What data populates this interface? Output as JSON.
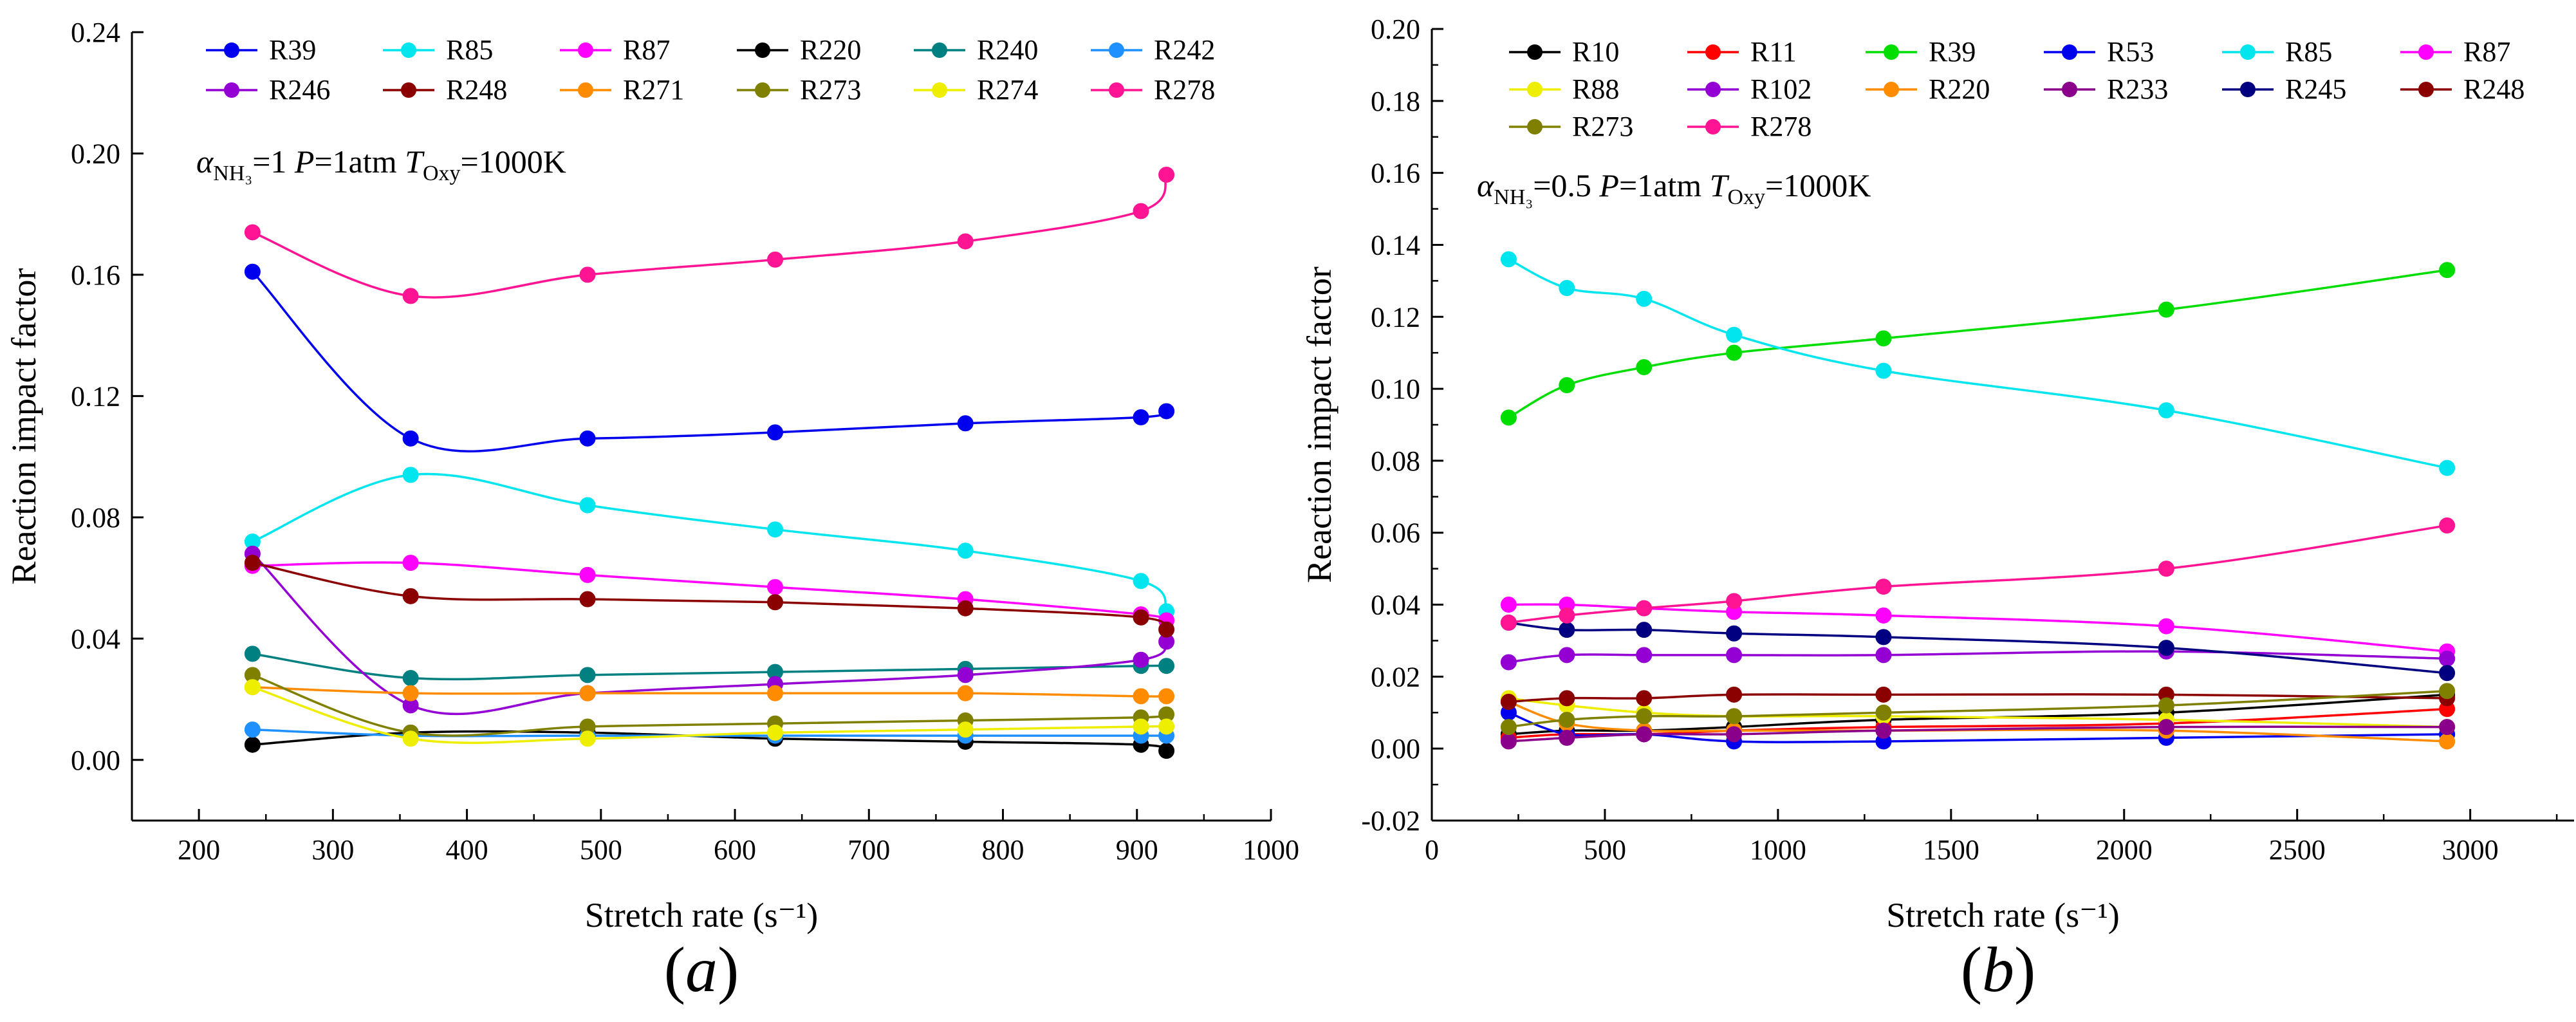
{
  "chart_data": [
    {
      "type": "line",
      "panel_label": "a",
      "ylabel": "Reaction impact factor",
      "xlabel": "Stretch rate (s⁻¹)",
      "annotation": {
        "alpha": "α",
        "alpha_sub": "NH₃",
        "eq1": "=1 ",
        "p": "P",
        "eq2": "=1atm ",
        "t": "T",
        "t_sub": "Oxy",
        "eq3": "=1000K"
      },
      "xlim": [
        150,
        1000
      ],
      "ylim": [
        -0.02,
        0.24
      ],
      "xticks": [
        200,
        300,
        400,
        500,
        600,
        700,
        800,
        900,
        1000
      ],
      "xtick_labels": [
        "200",
        "300",
        "400",
        "500",
        "600",
        "700",
        "800",
        "900",
        "1000"
      ],
      "yticks": [
        0.0,
        0.04,
        0.08,
        0.12,
        0.16,
        0.2,
        0.24
      ],
      "ytick_labels": [
        "0.00",
        "0.04",
        "0.08",
        "0.12",
        "0.16",
        "0.20",
        "0.24"
      ],
      "legend_columns": 6,
      "legend_position": "top",
      "x": [
        240,
        358,
        490,
        630,
        772,
        903,
        922
      ],
      "series": [
        {
          "name": "R39",
          "color": "#0000ee",
          "values": [
            0.161,
            0.106,
            0.106,
            0.108,
            0.111,
            0.113,
            0.115
          ]
        },
        {
          "name": "R85",
          "color": "#00e5ee",
          "values": [
            0.072,
            0.094,
            0.084,
            0.076,
            0.069,
            0.059,
            0.049
          ]
        },
        {
          "name": "R87",
          "color": "#ff00ff",
          "values": [
            0.064,
            0.065,
            0.061,
            0.057,
            0.053,
            0.048,
            0.046
          ]
        },
        {
          "name": "R220",
          "color": "#000000",
          "values": [
            0.005,
            0.009,
            0.009,
            0.007,
            0.006,
            0.005,
            0.003
          ]
        },
        {
          "name": "R240",
          "color": "#008080",
          "values": [
            0.035,
            0.027,
            0.028,
            0.029,
            0.03,
            0.031,
            0.031
          ]
        },
        {
          "name": "R242",
          "color": "#1e90ff",
          "values": [
            0.01,
            0.008,
            0.008,
            0.008,
            0.008,
            0.008,
            0.008
          ]
        },
        {
          "name": "R246",
          "color": "#9400d3",
          "values": [
            0.068,
            0.018,
            0.022,
            0.025,
            0.028,
            0.033,
            0.039
          ]
        },
        {
          "name": "R248",
          "color": "#8b0000",
          "values": [
            0.065,
            0.054,
            0.053,
            0.052,
            0.05,
            0.047,
            0.043
          ]
        },
        {
          "name": "R271",
          "color": "#ff8c00",
          "values": [
            0.024,
            0.022,
            0.022,
            0.022,
            0.022,
            0.021,
            0.021
          ]
        },
        {
          "name": "R273",
          "color": "#808000",
          "values": [
            0.028,
            0.009,
            0.011,
            0.012,
            0.013,
            0.014,
            0.015
          ]
        },
        {
          "name": "R274",
          "color": "#eeee00",
          "values": [
            0.024,
            0.007,
            0.007,
            0.009,
            0.01,
            0.011,
            0.011
          ]
        },
        {
          "name": "R278",
          "color": "#ff1493",
          "values": [
            0.174,
            0.153,
            0.16,
            0.165,
            0.171,
            0.181,
            0.193
          ]
        }
      ]
    },
    {
      "type": "line",
      "panel_label": "b",
      "ylabel": "Reaction impact factor",
      "xlabel": "Stretch rate (s⁻¹)",
      "annotation": {
        "alpha": "α",
        "alpha_sub": "NH₃",
        "eq1": "=0.5 ",
        "p": "P",
        "eq2": "=1atm ",
        "t": "T",
        "t_sub": "Oxy",
        "eq3": "=1000K"
      },
      "xlim": [
        0,
        3300
      ],
      "ylim": [
        -0.02,
        0.2
      ],
      "xticks": [
        0,
        500,
        1000,
        1500,
        2000,
        2500,
        3000
      ],
      "xtick_labels": [
        "0",
        "500",
        "1000",
        "1500",
        "2000",
        "2500",
        "3000"
      ],
      "yticks": [
        -0.02,
        0.0,
        0.02,
        0.04,
        0.06,
        0.08,
        0.1,
        0.12,
        0.14,
        0.16,
        0.18,
        0.2
      ],
      "ytick_labels": [
        "-0.02",
        "0.00",
        "0.02",
        "0.04",
        "0.06",
        "0.08",
        "0.10",
        "0.12",
        "0.14",
        "0.16",
        "0.18",
        "0.20"
      ],
      "legend_columns": 6,
      "legend_position": "top",
      "x": [
        222,
        390,
        613,
        873,
        1305,
        2122,
        2933
      ],
      "series": [
        {
          "name": "R10",
          "color": "#000000",
          "values": [
            0.004,
            0.005,
            0.005,
            0.006,
            0.008,
            0.01,
            0.015
          ]
        },
        {
          "name": "R11",
          "color": "#ff0000",
          "values": [
            0.003,
            0.004,
            0.004,
            0.005,
            0.006,
            0.007,
            0.011
          ]
        },
        {
          "name": "R39",
          "color": "#00dd00",
          "values": [
            0.092,
            0.101,
            0.106,
            0.11,
            0.114,
            0.122,
            0.133
          ]
        },
        {
          "name": "R53",
          "color": "#0000ee",
          "values": [
            0.01,
            0.004,
            0.004,
            0.002,
            0.002,
            0.003,
            0.004
          ]
        },
        {
          "name": "R85",
          "color": "#00e5ee",
          "values": [
            0.136,
            0.128,
            0.125,
            0.115,
            0.105,
            0.094,
            0.078
          ]
        },
        {
          "name": "R87",
          "color": "#ff00ff",
          "values": [
            0.04,
            0.04,
            0.039,
            0.038,
            0.037,
            0.034,
            0.027
          ]
        },
        {
          "name": "R88",
          "color": "#eeee00",
          "values": [
            0.014,
            0.012,
            0.01,
            0.009,
            0.009,
            0.008,
            0.006
          ]
        },
        {
          "name": "R102",
          "color": "#9400d3",
          "values": [
            0.024,
            0.026,
            0.026,
            0.026,
            0.026,
            0.027,
            0.025
          ]
        },
        {
          "name": "R220",
          "color": "#ff8c00",
          "values": [
            0.013,
            0.007,
            0.005,
            0.005,
            0.005,
            0.005,
            0.002
          ]
        },
        {
          "name": "R233",
          "color": "#8b008b",
          "values": [
            0.002,
            0.003,
            0.004,
            0.004,
            0.005,
            0.006,
            0.006
          ]
        },
        {
          "name": "R245",
          "color": "#000080",
          "values": [
            0.035,
            0.033,
            0.033,
            0.032,
            0.031,
            0.028,
            0.021
          ]
        },
        {
          "name": "R248",
          "color": "#8b0000",
          "values": [
            0.013,
            0.014,
            0.014,
            0.015,
            0.015,
            0.015,
            0.014
          ]
        },
        {
          "name": "R273",
          "color": "#808000",
          "values": [
            0.006,
            0.008,
            0.009,
            0.009,
            0.01,
            0.012,
            0.016
          ]
        },
        {
          "name": "R278",
          "color": "#ff1493",
          "values": [
            0.035,
            0.037,
            0.039,
            0.041,
            0.045,
            0.05,
            0.062
          ]
        }
      ]
    }
  ]
}
